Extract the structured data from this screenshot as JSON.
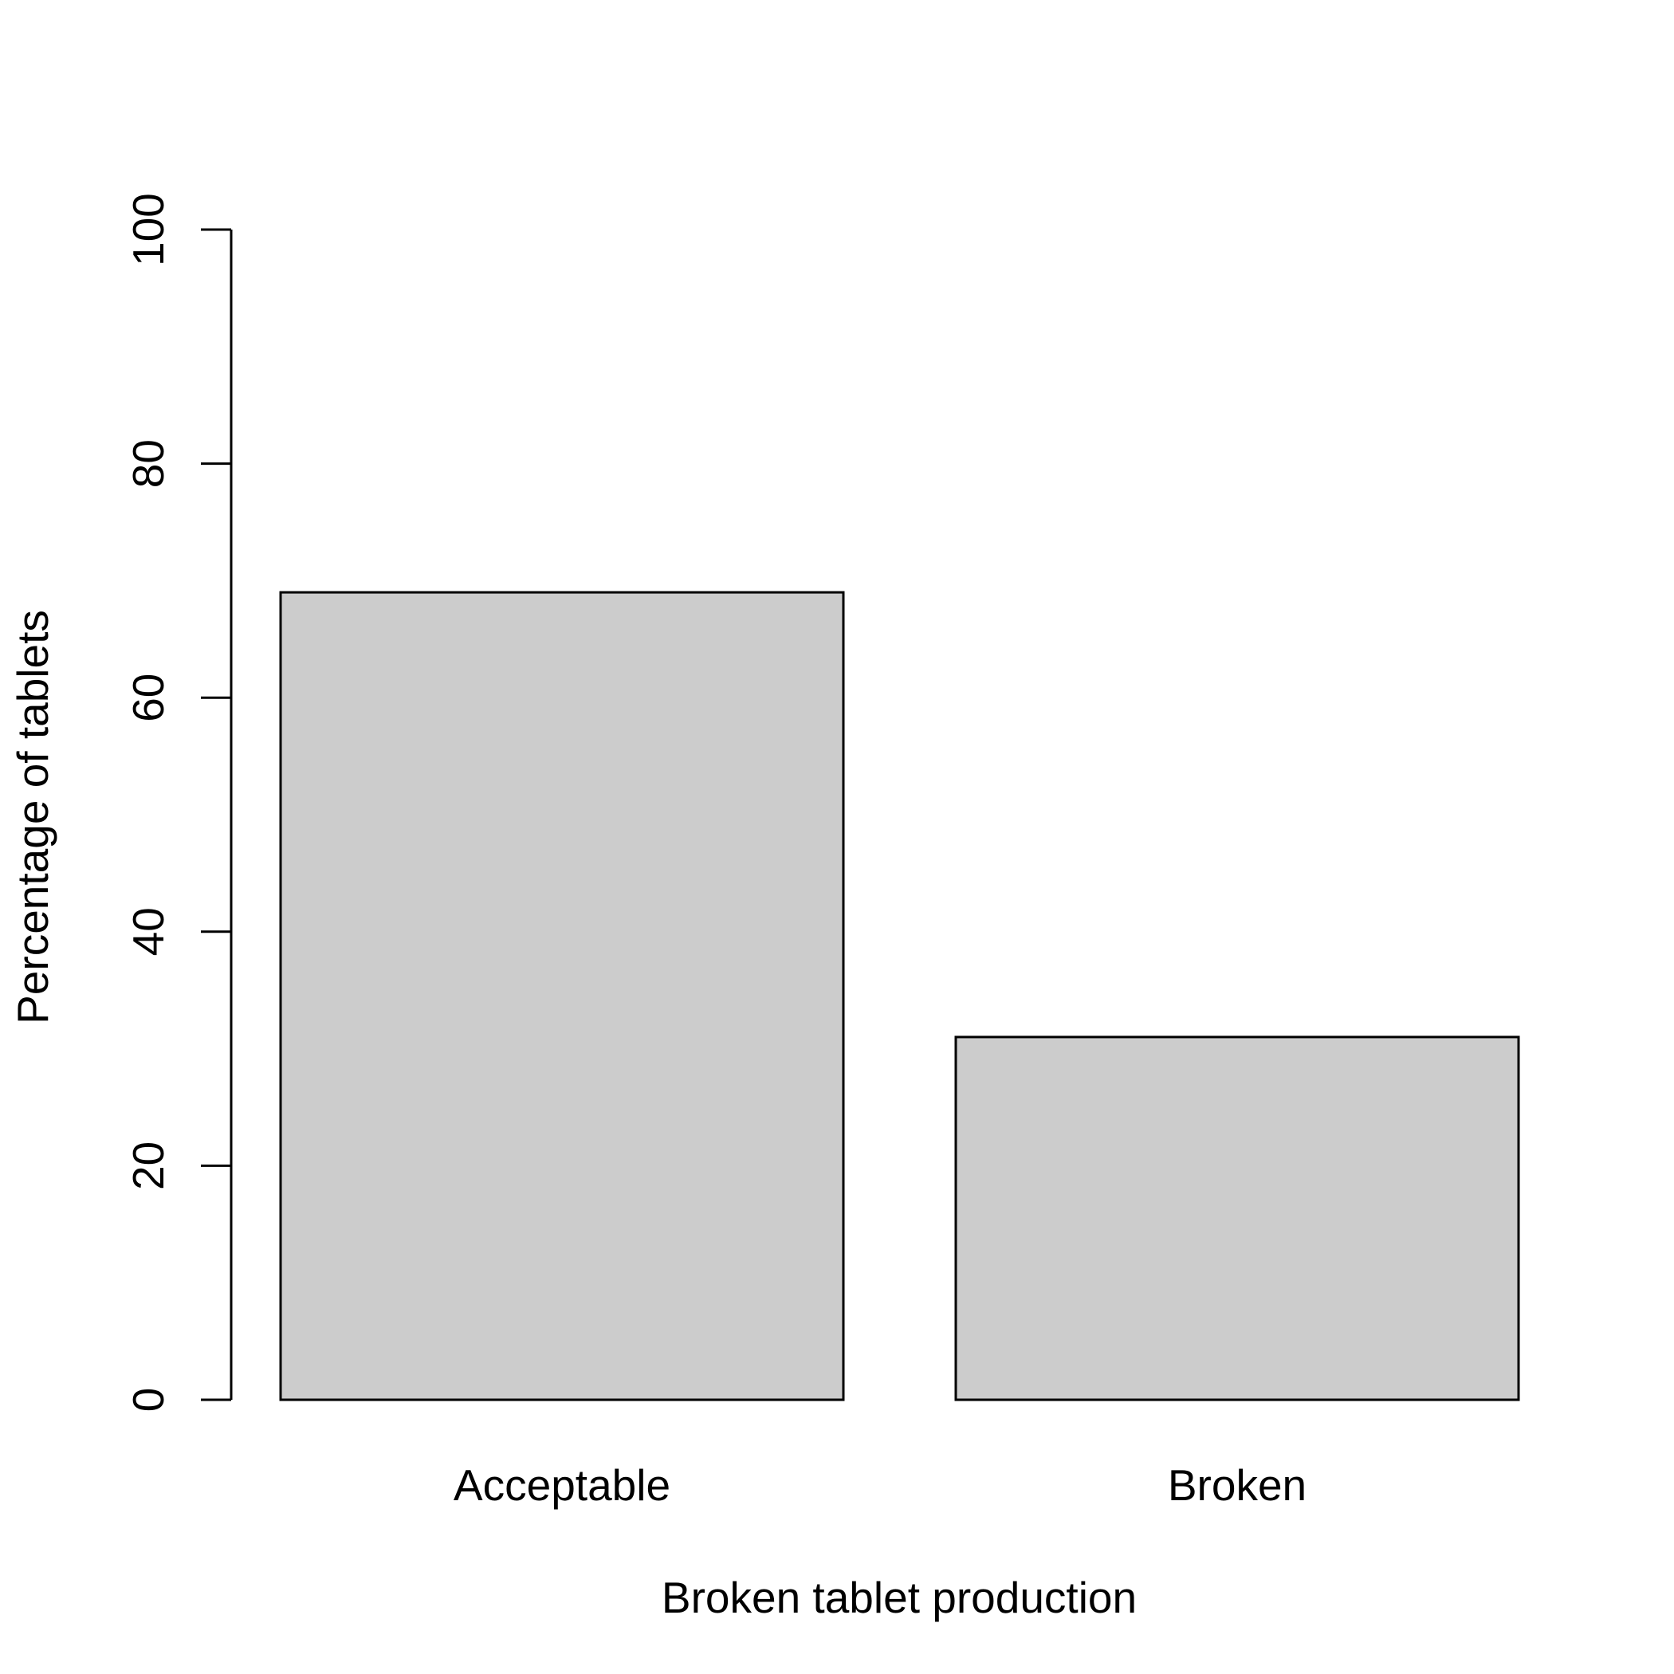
{
  "chart_data": {
    "type": "bar",
    "title": "",
    "categories": [
      "Acceptable",
      "Broken"
    ],
    "values": [
      69,
      31
    ],
    "xlabel": "Broken tablet production",
    "ylabel": "Percentage of tablets",
    "ylim": [
      0,
      100
    ],
    "yticks": [
      0,
      20,
      40,
      60,
      80,
      100
    ],
    "ytick_labels": [
      "0",
      "20",
      "40",
      "60",
      "80",
      "100"
    ],
    "grid": false,
    "legend": "none",
    "bar_color": "#cccccc",
    "edge_color": "#000000"
  }
}
